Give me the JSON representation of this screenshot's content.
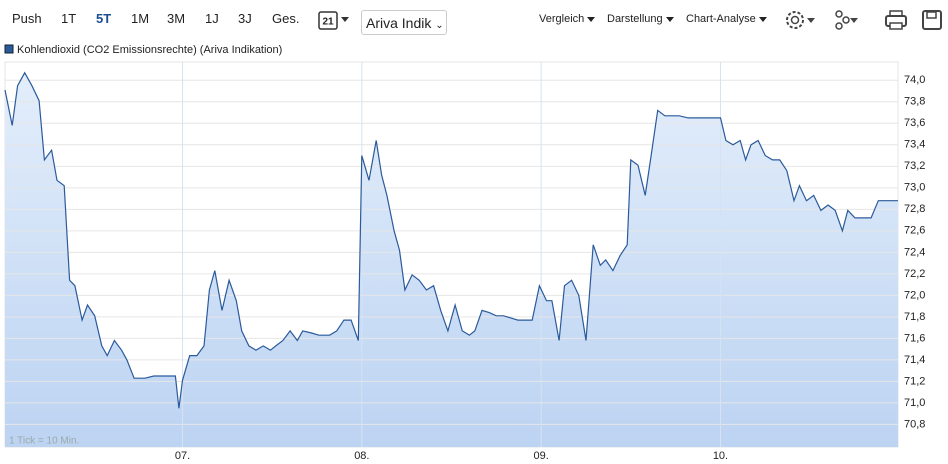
{
  "toolbar": {
    "ranges": [
      "Push",
      "1T",
      "5T",
      "1M",
      "3M",
      "1J",
      "3J",
      "Ges."
    ],
    "active": "5T",
    "calendar": "21",
    "source": "Ariva Indik",
    "menus": [
      "Vergleich",
      "Darstellung",
      "Chart-Analyse"
    ]
  },
  "chart_data": {
    "type": "line",
    "note": "1 Tick = 10 Min.",
    "x": [
      6.01,
      6.05,
      6.08,
      6.12,
      6.16,
      6.2,
      6.23,
      6.27,
      6.3,
      6.34,
      6.37,
      6.4,
      6.44,
      6.47,
      6.51,
      6.55,
      6.58,
      6.62,
      6.66,
      6.69,
      6.73,
      6.79,
      6.84,
      6.9,
      6.96,
      6.98,
      7.0,
      7.04,
      7.08,
      7.12,
      7.15,
      7.18,
      7.22,
      7.26,
      7.3,
      7.33,
      7.37,
      7.41,
      7.45,
      7.49,
      7.52,
      7.56,
      7.6,
      7.64,
      7.67,
      7.72,
      7.76,
      7.82,
      7.86,
      7.9,
      7.94,
      7.98,
      8.0,
      8.04,
      8.08,
      8.11,
      8.14,
      8.18,
      8.21,
      8.24,
      8.28,
      8.32,
      8.36,
      8.4,
      8.44,
      8.48,
      8.52,
      8.56,
      8.6,
      8.63,
      8.67,
      8.71,
      8.75,
      8.79,
      8.83,
      8.87,
      8.91,
      8.95,
      8.99,
      9.03,
      9.06,
      9.1,
      9.13,
      9.17,
      9.21,
      9.25,
      9.29,
      9.33,
      9.36,
      9.4,
      9.44,
      9.48,
      9.5,
      9.54,
      9.58,
      9.61,
      9.65,
      9.69,
      9.73,
      9.77,
      9.82,
      9.86,
      9.91,
      9.95,
      10.0,
      10.03,
      10.07,
      10.11,
      10.14,
      10.17,
      10.21,
      10.25,
      10.29,
      10.33,
      10.37,
      10.41,
      10.44,
      10.48,
      10.52,
      10.56,
      10.6,
      10.64,
      10.68,
      10.71,
      10.75,
      10.8,
      10.84,
      10.88,
      10.93,
      10.99
    ],
    "series": [
      {
        "name": "Kohlendioxid (CO2 Emissionsrechte) (Ariva Indikation)",
        "color": "#2b5a9b",
        "values": [
          73.91,
          73.58,
          73.95,
          74.07,
          73.95,
          73.81,
          73.26,
          73.35,
          73.07,
          73.02,
          72.14,
          72.09,
          71.77,
          71.91,
          71.81,
          71.53,
          71.44,
          71.58,
          71.49,
          71.4,
          71.23,
          71.23,
          71.25,
          71.25,
          71.25,
          70.95,
          71.21,
          71.44,
          71.44,
          71.53,
          72.05,
          72.23,
          71.86,
          72.14,
          71.95,
          71.67,
          71.53,
          71.49,
          71.53,
          71.49,
          71.53,
          71.58,
          71.67,
          71.58,
          71.67,
          71.65,
          71.63,
          71.63,
          71.67,
          71.77,
          71.77,
          71.58,
          73.3,
          73.07,
          73.44,
          73.12,
          72.93,
          72.6,
          72.42,
          72.05,
          72.19,
          72.14,
          72.05,
          72.09,
          71.86,
          71.67,
          71.91,
          71.67,
          71.63,
          71.67,
          71.86,
          71.84,
          71.81,
          71.81,
          71.79,
          71.77,
          71.77,
          71.77,
          72.09,
          71.95,
          71.95,
          71.58,
          72.09,
          72.14,
          72.0,
          71.58,
          72.47,
          72.28,
          72.33,
          72.23,
          72.37,
          72.47,
          73.26,
          73.21,
          72.93,
          73.26,
          73.72,
          73.67,
          73.67,
          73.67,
          73.65,
          73.65,
          73.65,
          73.65,
          73.65,
          73.44,
          73.4,
          73.44,
          73.26,
          73.4,
          73.44,
          73.3,
          73.26,
          73.26,
          73.16,
          72.88,
          73.02,
          72.88,
          72.93,
          72.79,
          72.84,
          72.79,
          72.6,
          72.79,
          72.72,
          72.72,
          72.72,
          72.88,
          72.88,
          72.88
        ]
      }
    ],
    "xlim": [
      6.01,
      10.99
    ],
    "xticks": [
      {
        "value": 7,
        "label": "07."
      },
      {
        "value": 8,
        "label": "08."
      },
      {
        "value": 9,
        "label": "09."
      },
      {
        "value": 10,
        "label": "10."
      }
    ],
    "ylim": [
      70.59,
      74.17
    ],
    "yticks": [
      {
        "value": 70.8,
        "label": "70,8"
      },
      {
        "value": 71.0,
        "label": "71,0"
      },
      {
        "value": 71.2,
        "label": "71,2"
      },
      {
        "value": 71.4,
        "label": "71,4"
      },
      {
        "value": 71.6,
        "label": "71,6"
      },
      {
        "value": 71.8,
        "label": "71,8"
      },
      {
        "value": 72.0,
        "label": "72,0"
      },
      {
        "value": 72.2,
        "label": "72,2"
      },
      {
        "value": 72.4,
        "label": "72,4"
      },
      {
        "value": 72.6,
        "label": "72,6"
      },
      {
        "value": 72.8,
        "label": "72,8"
      },
      {
        "value": 73.0,
        "label": "73,0"
      },
      {
        "value": 73.2,
        "label": "73,2"
      },
      {
        "value": 73.4,
        "label": "73,4"
      },
      {
        "value": 73.6,
        "label": "73,6"
      },
      {
        "value": 73.8,
        "label": "73,8"
      },
      {
        "value": 74.0,
        "label": "74,0"
      }
    ],
    "grid": true
  }
}
